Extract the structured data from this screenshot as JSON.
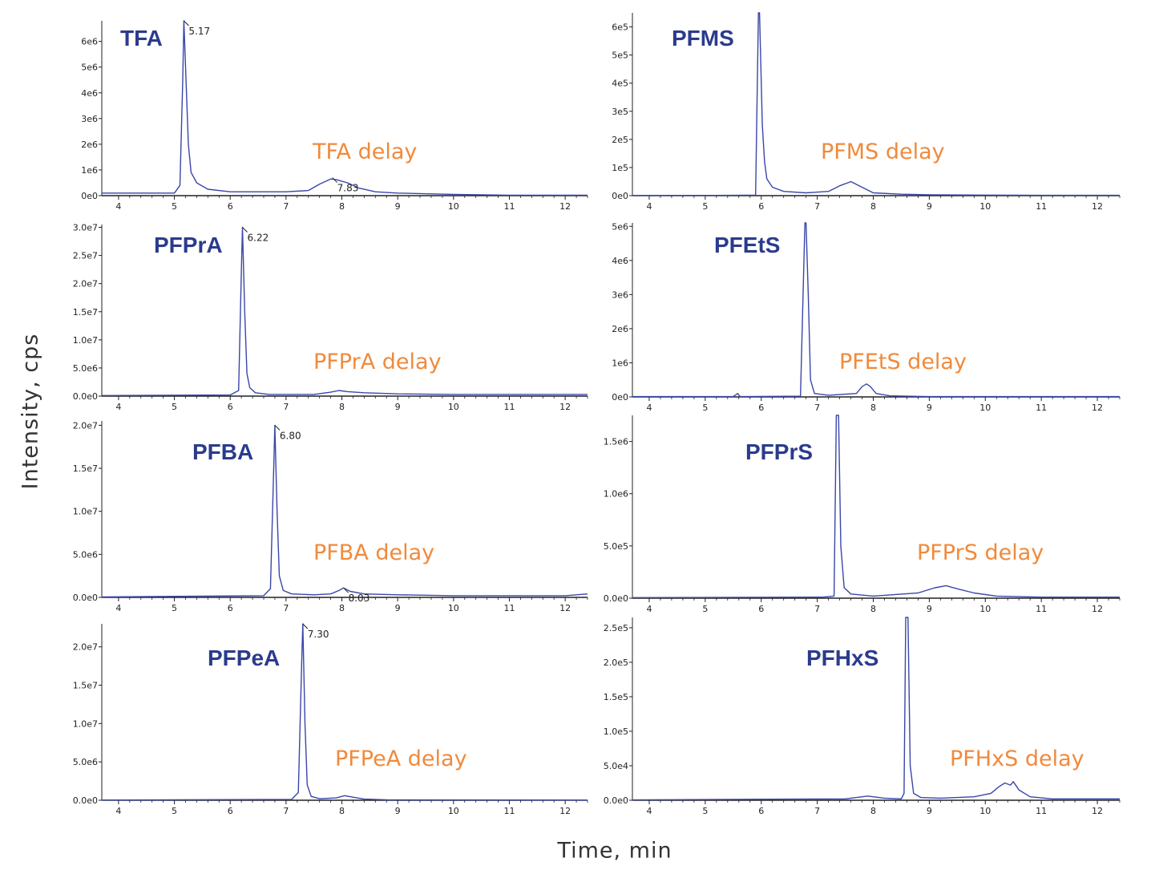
{
  "figure": {
    "ylabel": "Intensity, cps",
    "xlabel": "Time, min"
  },
  "colors": {
    "trace": "#3a46a8",
    "compound": "#2b3b8c",
    "delay": "#f08a3c",
    "axis": "#222222"
  },
  "chart_data": [
    {
      "type": "line",
      "compound": "TFA",
      "delay_label": "TFA delay",
      "xlim": [
        3.7,
        12.4
      ],
      "ylim": [
        0,
        6800000.0
      ],
      "xticks": [
        "4",
        "5",
        "6",
        "7",
        "8",
        "9",
        "10",
        "11",
        "12"
      ],
      "yticks": [
        {
          "v": 0,
          "l": "0e0"
        },
        {
          "v": 1000000.0,
          "l": "1e6"
        },
        {
          "v": 2000000.0,
          "l": "2e6"
        },
        {
          "v": 3000000.0,
          "l": "3e6"
        },
        {
          "v": 4000000.0,
          "l": "4e6"
        },
        {
          "v": 5000000.0,
          "l": "5e6"
        },
        {
          "v": 6000000.0,
          "l": "6e6"
        }
      ],
      "peak_labels": [
        {
          "x": 5.17,
          "text": "5.17",
          "y": 6800000.0
        },
        {
          "x": 7.83,
          "text": "7.83",
          "y": 700000.0
        }
      ],
      "series": [
        {
          "x": [
            3.7,
            5.0,
            5.1,
            5.15,
            5.17,
            5.2,
            5.25,
            5.3,
            5.4,
            5.6,
            6.0,
            7.0,
            7.4,
            7.6,
            7.8,
            7.9,
            8.1,
            8.3,
            8.6,
            9.0,
            10.0,
            11.0,
            12.4
          ],
          "y": [
            100000.0,
            100000.0,
            400000.0,
            4500000.0,
            6800000.0,
            5000000.0,
            2000000.0,
            900000.0,
            500000.0,
            250000.0,
            150000.0,
            150000.0,
            200000.0,
            450000.0,
            650000.0,
            620000.0,
            500000.0,
            300000.0,
            150000.0,
            100000.0,
            50000.0,
            20000.0,
            20000.0
          ]
        }
      ]
    },
    {
      "type": "line",
      "compound": "PFMS",
      "delay_label": "PFMS delay",
      "xlim": [
        3.7,
        12.4
      ],
      "ylim": [
        0,
        650000.0
      ],
      "xticks": [
        "4",
        "5",
        "6",
        "7",
        "8",
        "9",
        "10",
        "11",
        "12"
      ],
      "yticks": [
        {
          "v": 0,
          "l": "0e0"
        },
        {
          "v": 100000.0,
          "l": "1e5"
        },
        {
          "v": 200000.0,
          "l": "2e5"
        },
        {
          "v": 300000.0,
          "l": "3e5"
        },
        {
          "v": 400000.0,
          "l": "4e5"
        },
        {
          "v": 500000.0,
          "l": "5e5"
        },
        {
          "v": 600000.0,
          "l": "6e5"
        }
      ],
      "peak_labels": [],
      "series": [
        {
          "x": [
            3.7,
            5.5,
            5.9,
            5.95,
            5.97,
            6.02,
            6.06,
            6.1,
            6.2,
            6.4,
            6.8,
            7.2,
            7.4,
            7.6,
            7.8,
            8.0,
            8.5,
            9.0,
            10.0,
            11.0,
            12.4
          ],
          "y": [
            500.0,
            1000.0,
            2000.0,
            650000.0,
            650000.0,
            250000.0,
            120000.0,
            60000.0,
            30000.0,
            15000.0,
            10000.0,
            15000.0,
            35000.0,
            50000.0,
            30000.0,
            10000.0,
            5000.0,
            3000.0,
            2000.0,
            1000.0,
            1000.0
          ]
        }
      ]
    },
    {
      "type": "line",
      "compound": "PFPrA",
      "delay_label": "PFPrA delay",
      "xlim": [
        3.7,
        12.4
      ],
      "ylim": [
        0,
        30500000.0
      ],
      "xticks": [
        "4",
        "5",
        "6",
        "7",
        "8",
        "9",
        "10",
        "11",
        "12"
      ],
      "yticks": [
        {
          "v": 0,
          "l": "0.0e0"
        },
        {
          "v": 5000000.0,
          "l": "5.0e6"
        },
        {
          "v": 10000000.0,
          "l": "1.0e7"
        },
        {
          "v": 15000000.0,
          "l": "1.5e7"
        },
        {
          "v": 20000000.0,
          "l": "2.0e7"
        },
        {
          "v": 25000000.0,
          "l": "2.5e7"
        },
        {
          "v": 30000000.0,
          "l": "3.0e7"
        }
      ],
      "peak_labels": [
        {
          "x": 6.22,
          "text": "6.22",
          "y": 30000000.0
        }
      ],
      "series": [
        {
          "x": [
            3.7,
            6.0,
            6.15,
            6.2,
            6.22,
            6.26,
            6.3,
            6.35,
            6.45,
            6.7,
            7.5,
            7.8,
            7.95,
            8.1,
            8.4,
            9.0,
            10.0,
            12.4
          ],
          "y": [
            100000.0,
            200000.0,
            1000000.0,
            22000000.0,
            30000000.0,
            15000000.0,
            4000000.0,
            1500000.0,
            600000.0,
            300000.0,
            300000.0,
            700000.0,
            1000000.0,
            800000.0,
            600000.0,
            400000.0,
            300000.0,
            300000.0
          ]
        }
      ]
    },
    {
      "type": "line",
      "compound": "PFEtS",
      "delay_label": "PFEtS delay",
      "xlim": [
        3.7,
        12.4
      ],
      "ylim": [
        0,
        5100000.0
      ],
      "xticks": [
        "4",
        "5",
        "6",
        "7",
        "8",
        "9",
        "10",
        "11",
        "12"
      ],
      "yticks": [
        {
          "v": 0,
          "l": "0e0"
        },
        {
          "v": 1000000.0,
          "l": "1e6"
        },
        {
          "v": 2000000.0,
          "l": "2e6"
        },
        {
          "v": 3000000.0,
          "l": "3e6"
        },
        {
          "v": 4000000.0,
          "l": "4e6"
        },
        {
          "v": 5000000.0,
          "l": "5e6"
        }
      ],
      "peak_labels": [],
      "series": [
        {
          "x": [
            3.7,
            5.5,
            5.58,
            5.62,
            5.7,
            6.7,
            6.78,
            6.8,
            6.84,
            6.88,
            6.95,
            7.2,
            7.7,
            7.8,
            7.88,
            7.95,
            8.05,
            8.3,
            9.0,
            12.4
          ],
          "y": [
            10000.0,
            10000.0,
            100000.0,
            10000.0,
            10000.0,
            20000.0,
            5100000.0,
            5100000.0,
            3000000.0,
            500000.0,
            100000.0,
            50000.0,
            100000.0,
            300000.0,
            380000.0,
            300000.0,
            100000.0,
            30000.0,
            10000.0,
            10000.0
          ]
        }
      ]
    },
    {
      "type": "line",
      "compound": "PFBA",
      "delay_label": "PFBA delay",
      "xlim": [
        3.7,
        12.4
      ],
      "ylim": [
        0,
        20500000.0
      ],
      "xticks": [
        "4",
        "5",
        "6",
        "7",
        "8",
        "9",
        "10",
        "11",
        "12"
      ],
      "yticks": [
        {
          "v": 0,
          "l": "0.0e0"
        },
        {
          "v": 5000000.0,
          "l": "5.0e6"
        },
        {
          "v": 10000000.0,
          "l": "1.0e7"
        },
        {
          "v": 15000000.0,
          "l": "1.5e7"
        },
        {
          "v": 20000000.0,
          "l": "2.0e7"
        }
      ],
      "peak_labels": [
        {
          "x": 6.8,
          "text": "6.80",
          "y": 20000000.0
        },
        {
          "x": 8.03,
          "text": "8.03",
          "y": 1100000.0
        }
      ],
      "series": [
        {
          "x": [
            3.7,
            6.6,
            6.72,
            6.78,
            6.8,
            6.84,
            6.88,
            6.95,
            7.1,
            7.5,
            7.8,
            7.95,
            8.03,
            8.15,
            8.4,
            9.0,
            10.0,
            12.0,
            12.4
          ],
          "y": [
            50000.0,
            200000.0,
            1000000.0,
            15000000.0,
            20000000.0,
            10000000.0,
            2500000.0,
            800000.0,
            400000.0,
            300000.0,
            400000.0,
            800000.0,
            1100000.0,
            700000.0,
            400000.0,
            300000.0,
            200000.0,
            200000.0,
            400000.0
          ]
        }
      ]
    },
    {
      "type": "line",
      "compound": "PFPrS",
      "delay_label": "PFPrS delay",
      "xlim": [
        3.7,
        12.4
      ],
      "ylim": [
        0,
        1750000.0
      ],
      "xticks": [
        "4",
        "5",
        "6",
        "7",
        "8",
        "9",
        "10",
        "11",
        "12"
      ],
      "yticks": [
        {
          "v": 0,
          "l": "0.0e0"
        },
        {
          "v": 500000.0,
          "l": "5.0e5"
        },
        {
          "v": 1000000.0,
          "l": "1.0e6"
        },
        {
          "v": 1500000.0,
          "l": "1.5e6"
        }
      ],
      "peak_labels": [],
      "series": [
        {
          "x": [
            3.7,
            7.1,
            7.3,
            7.34,
            7.38,
            7.42,
            7.48,
            7.6,
            8.0,
            8.8,
            9.1,
            9.3,
            9.5,
            9.8,
            10.2,
            11.0,
            12.4
          ],
          "y": [
            5000.0,
            10000.0,
            20000.0,
            1750000.0,
            1750000.0,
            500000.0,
            100000.0,
            40000.0,
            20000.0,
            50000.0,
            100000.0,
            120000.0,
            90000.0,
            50000.0,
            20000.0,
            10000.0,
            10000.0
          ]
        }
      ]
    },
    {
      "type": "line",
      "compound": "PFPeA",
      "delay_label": "PFPeA delay",
      "xlim": [
        3.7,
        12.4
      ],
      "ylim": [
        0,
        23000000.0
      ],
      "xticks": [
        "4",
        "5",
        "6",
        "7",
        "8",
        "9",
        "10",
        "11",
        "12"
      ],
      "yticks": [
        {
          "v": 0,
          "l": "0.0e0"
        },
        {
          "v": 5000000.0,
          "l": "5.0e6"
        },
        {
          "v": 10000000.0,
          "l": "1.0e7"
        },
        {
          "v": 15000000.0,
          "l": "1.5e7"
        },
        {
          "v": 20000000.0,
          "l": "2.0e7"
        }
      ],
      "peak_labels": [
        {
          "x": 7.3,
          "text": "7.30",
          "y": 23000000.0
        }
      ],
      "series": [
        {
          "x": [
            3.7,
            7.1,
            7.22,
            7.28,
            7.3,
            7.34,
            7.38,
            7.45,
            7.6,
            7.9,
            8.05,
            8.2,
            8.4,
            8.8,
            12.4
          ],
          "y": [
            20000.0,
            100000.0,
            1000000.0,
            18000000.0,
            23000000.0,
            10000000.0,
            2000000.0,
            500000.0,
            200000.0,
            300000.0,
            600000.0,
            400000.0,
            150000.0,
            50000.0,
            20000.0
          ]
        }
      ]
    },
    {
      "type": "line",
      "compound": "PFHxS",
      "delay_label": "PFHxS delay",
      "xlim": [
        3.7,
        12.4
      ],
      "ylim": [
        0,
        265000.0
      ],
      "xticks": [
        "4",
        "5",
        "6",
        "7",
        "8",
        "9",
        "10",
        "11",
        "12"
      ],
      "yticks": [
        {
          "v": 0,
          "l": "0.0e0"
        },
        {
          "v": 50000.0,
          "l": "5.0e4"
        },
        {
          "v": 100000.0,
          "l": "1.0e5"
        },
        {
          "v": 150000.0,
          "l": "1.5e5"
        },
        {
          "v": 200000.0,
          "l": "2.0e5"
        },
        {
          "v": 250000.0,
          "l": "2.5e5"
        }
      ],
      "peak_labels": [],
      "series": [
        {
          "x": [
            3.7,
            7.5,
            7.9,
            8.2,
            8.5,
            8.55,
            8.58,
            8.62,
            8.66,
            8.72,
            8.85,
            9.2,
            9.8,
            10.1,
            10.25,
            10.35,
            10.45,
            10.5,
            10.6,
            10.8,
            11.2,
            12.4
          ],
          "y": [
            500.0,
            2000.0,
            6000.0,
            3000.0,
            2000.0,
            10000.0,
            265000.0,
            265000.0,
            50000.0,
            10000.0,
            4000.0,
            3000.0,
            5000.0,
            10000.0,
            20000.0,
            25000.0,
            22000.0,
            27000.0,
            15000.0,
            5000.0,
            2000.0,
            2000.0
          ]
        }
      ]
    }
  ]
}
